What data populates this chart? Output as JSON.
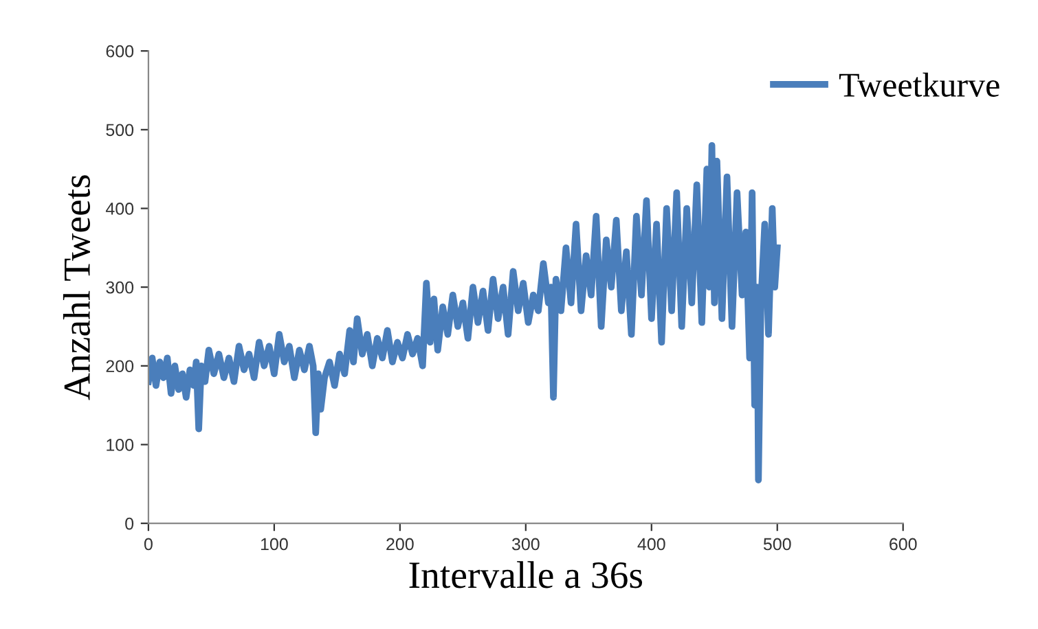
{
  "chart_data": {
    "type": "line",
    "xlabel": "Intervalle a 36s",
    "ylabel": "Anzahl Tweets",
    "xlim": [
      0,
      600
    ],
    "ylim": [
      0,
      600
    ],
    "xticks": [
      0,
      100,
      200,
      300,
      400,
      500,
      600
    ],
    "yticks": [
      0,
      100,
      200,
      300,
      400,
      500,
      600
    ],
    "grid": false,
    "legend": "top right",
    "marker": "none",
    "line_style": "solid",
    "series": [
      {
        "name": "Tweetkurve",
        "color": "#4a7ebb",
        "x": [
          0,
          3,
          6,
          9,
          12,
          15,
          18,
          21,
          24,
          27,
          30,
          33,
          36,
          38,
          40,
          42,
          45,
          48,
          52,
          56,
          60,
          64,
          68,
          72,
          76,
          80,
          84,
          88,
          92,
          96,
          100,
          104,
          108,
          112,
          116,
          120,
          124,
          128,
          131,
          133,
          135,
          137,
          140,
          144,
          148,
          152,
          156,
          160,
          163,
          166,
          170,
          174,
          178,
          182,
          186,
          190,
          194,
          198,
          202,
          206,
          210,
          214,
          218,
          221,
          224,
          227,
          230,
          234,
          238,
          242,
          246,
          250,
          254,
          258,
          262,
          266,
          270,
          274,
          278,
          282,
          286,
          290,
          294,
          298,
          302,
          306,
          310,
          314,
          318,
          320,
          322,
          324,
          328,
          332,
          336,
          340,
          344,
          348,
          352,
          356,
          360,
          364,
          368,
          372,
          376,
          380,
          384,
          388,
          392,
          396,
          400,
          404,
          408,
          412,
          416,
          420,
          424,
          428,
          432,
          436,
          440,
          444,
          446,
          448,
          450,
          452,
          456,
          460,
          464,
          468,
          472,
          475,
          478,
          480,
          482,
          484,
          485,
          487,
          490,
          493,
          496,
          498,
          500
        ],
        "values": [
          180,
          210,
          175,
          205,
          185,
          210,
          165,
          200,
          170,
          190,
          160,
          195,
          175,
          205,
          120,
          200,
          180,
          220,
          190,
          215,
          185,
          210,
          180,
          225,
          195,
          215,
          185,
          230,
          200,
          225,
          190,
          240,
          205,
          225,
          185,
          220,
          195,
          225,
          200,
          115,
          190,
          145,
          185,
          205,
          175,
          215,
          190,
          245,
          205,
          260,
          215,
          240,
          200,
          235,
          210,
          245,
          205,
          230,
          210,
          240,
          215,
          235,
          200,
          305,
          230,
          285,
          220,
          275,
          240,
          290,
          250,
          280,
          235,
          300,
          255,
          295,
          245,
          310,
          260,
          300,
          240,
          320,
          270,
          305,
          255,
          290,
          270,
          330,
          280,
          300,
          160,
          310,
          270,
          350,
          280,
          380,
          270,
          340,
          290,
          390,
          250,
          360,
          300,
          385,
          270,
          345,
          240,
          390,
          290,
          410,
          260,
          380,
          230,
          400,
          270,
          420,
          250,
          400,
          280,
          430,
          255,
          450,
          300,
          480,
          280,
          460,
          260,
          440,
          250,
          420,
          290,
          370,
          210,
          420,
          150,
          300,
          55,
          280,
          380,
          240,
          400,
          300,
          350
        ]
      }
    ]
  }
}
